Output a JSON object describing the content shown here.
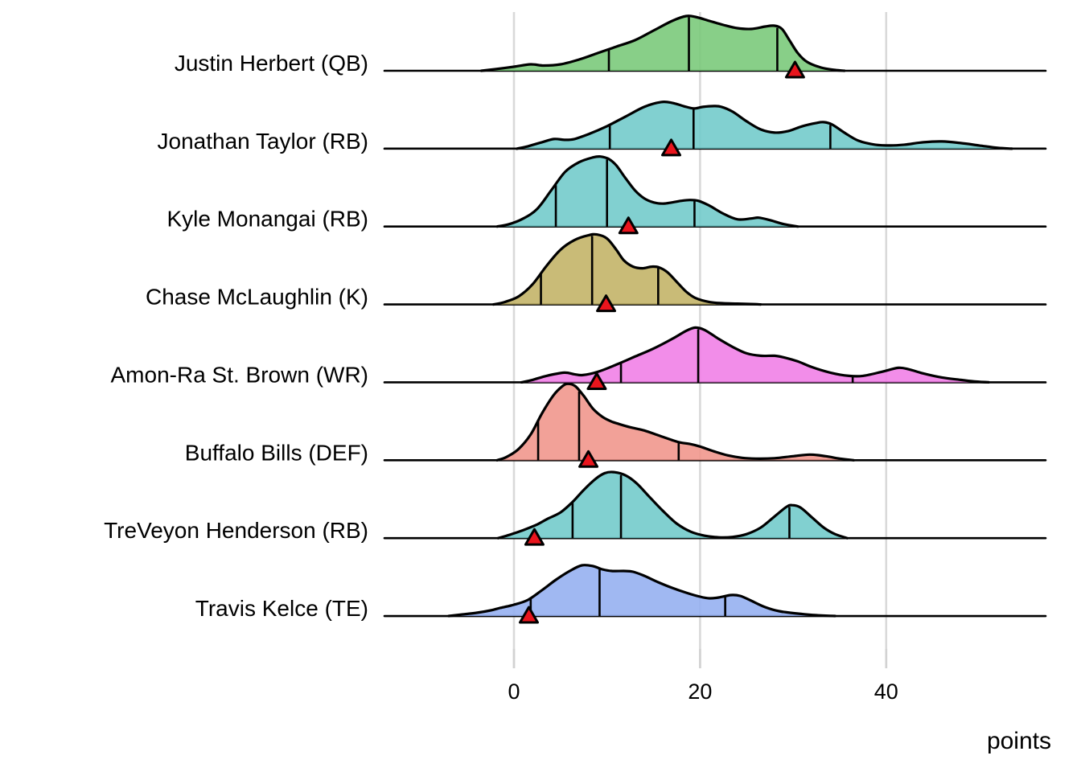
{
  "chart_data": {
    "type": "ridgeline",
    "title": "",
    "xlabel": "points",
    "x_ticks": [
      0,
      20,
      40
    ],
    "x_domain": [
      -14,
      57
    ],
    "grid": "vertical-major-only",
    "marker_legend": "red triangle = actual points",
    "quartile_lines": [
      "q1",
      "median",
      "q3"
    ],
    "colors": {
      "ink": "#000000",
      "gridline": "#d9d9d9",
      "tick": "#d2d2d2",
      "marker_fill": "#e9151d",
      "marker_stroke": "#000000"
    },
    "rows": [
      {
        "label": "Justin Herbert (QB)",
        "fill": "#78c878",
        "quartiles": [
          10.2,
          18.8,
          28.3
        ],
        "actual": 30.2,
        "curve": [
          [
            -3.5,
            0
          ],
          [
            -2,
            2
          ],
          [
            0,
            5
          ],
          [
            1.8,
            8
          ],
          [
            3.2,
            6.5
          ],
          [
            5,
            8
          ],
          [
            7,
            14
          ],
          [
            9,
            22
          ],
          [
            11,
            30
          ],
          [
            13,
            38
          ],
          [
            15,
            50
          ],
          [
            17,
            62
          ],
          [
            18.5,
            68
          ],
          [
            19.5,
            67
          ],
          [
            21,
            62
          ],
          [
            22.5,
            57
          ],
          [
            24,
            53
          ],
          [
            25.5,
            52
          ],
          [
            27,
            55
          ],
          [
            28,
            56
          ],
          [
            28.8,
            52
          ],
          [
            29.6,
            38
          ],
          [
            30.5,
            22
          ],
          [
            31.5,
            11
          ],
          [
            33,
            4
          ],
          [
            34.5,
            1
          ],
          [
            35.5,
            0
          ]
        ]
      },
      {
        "label": "Jonathan Taylor (RB)",
        "fill": "#6fc9c9",
        "quartiles": [
          10.3,
          19.3,
          34.0
        ],
        "actual": 16.9,
        "curve": [
          [
            0.3,
            0
          ],
          [
            1.5,
            3
          ],
          [
            3,
            8
          ],
          [
            4.3,
            12
          ],
          [
            5.5,
            11
          ],
          [
            6.5,
            12
          ],
          [
            8,
            18
          ],
          [
            10,
            28
          ],
          [
            12,
            40
          ],
          [
            14,
            52
          ],
          [
            15.8,
            58
          ],
          [
            17,
            57
          ],
          [
            18.2,
            53
          ],
          [
            19.3,
            50
          ],
          [
            20.3,
            52
          ],
          [
            21.5,
            53
          ],
          [
            22.3,
            52
          ],
          [
            23.5,
            46
          ],
          [
            25,
            34
          ],
          [
            26.5,
            24
          ],
          [
            28,
            20
          ],
          [
            29.5,
            22
          ],
          [
            31,
            28
          ],
          [
            32.5,
            32
          ],
          [
            33.3,
            33
          ],
          [
            34.2,
            30
          ],
          [
            35.5,
            20
          ],
          [
            37,
            10
          ],
          [
            38.8,
            5
          ],
          [
            40.5,
            4
          ],
          [
            42,
            5
          ],
          [
            44,
            8
          ],
          [
            46,
            9
          ],
          [
            48,
            7
          ],
          [
            50,
            4
          ],
          [
            52,
            1
          ],
          [
            53.5,
            0
          ]
        ]
      },
      {
        "label": "Kyle Monangai (RB)",
        "fill": "#6fc9c9",
        "quartiles": [
          4.5,
          10.0,
          19.4
        ],
        "actual": 12.3,
        "curve": [
          [
            -1.8,
            0
          ],
          [
            -0.5,
            3
          ],
          [
            1,
            10
          ],
          [
            2.5,
            22
          ],
          [
            4,
            45
          ],
          [
            5.5,
            68
          ],
          [
            7,
            80
          ],
          [
            8.5,
            86
          ],
          [
            9.3,
            87
          ],
          [
            10.2,
            84
          ],
          [
            11,
            76
          ],
          [
            12,
            60
          ],
          [
            13,
            45
          ],
          [
            14,
            35
          ],
          [
            15,
            30
          ],
          [
            16,
            28.5
          ],
          [
            17,
            30
          ],
          [
            18,
            32
          ],
          [
            18.9,
            33
          ],
          [
            19.8,
            32
          ],
          [
            21,
            26
          ],
          [
            22.5,
            16
          ],
          [
            24,
            9
          ],
          [
            25.5,
            10
          ],
          [
            26.3,
            11
          ],
          [
            27.5,
            8
          ],
          [
            29,
            3
          ],
          [
            30.5,
            0
          ]
        ]
      },
      {
        "label": "Chase McLaughlin (K)",
        "fill": "#c2b264",
        "quartiles": [
          2.9,
          8.4,
          15.5
        ],
        "actual": 9.9,
        "curve": [
          [
            -2.2,
            0
          ],
          [
            -1,
            3
          ],
          [
            0.5,
            10
          ],
          [
            2,
            25
          ],
          [
            3.5,
            48
          ],
          [
            5,
            68
          ],
          [
            6.5,
            80
          ],
          [
            8,
            86
          ],
          [
            8.9,
            87
          ],
          [
            10,
            82
          ],
          [
            11,
            68
          ],
          [
            11.8,
            55
          ],
          [
            12.8,
            47
          ],
          [
            13.8,
            45
          ],
          [
            14.8,
            47
          ],
          [
            15.6,
            46
          ],
          [
            16.5,
            40
          ],
          [
            17.5,
            28
          ],
          [
            18.5,
            16
          ],
          [
            19.5,
            8
          ],
          [
            21,
            3
          ],
          [
            22.5,
            1.5
          ],
          [
            24,
            1
          ],
          [
            25.5,
            0.5
          ],
          [
            26.5,
            0
          ]
        ]
      },
      {
        "label": "Amon-Ra St. Brown (WR)",
        "fill": "#f07de6",
        "quartiles": [
          11.5,
          19.8,
          36.4
        ],
        "actual": 8.9,
        "curve": [
          [
            0.8,
            0
          ],
          [
            2,
            3
          ],
          [
            3.5,
            8
          ],
          [
            5.4,
            12
          ],
          [
            6.5,
            10
          ],
          [
            7.4,
            9
          ],
          [
            9,
            13
          ],
          [
            11,
            22
          ],
          [
            13,
            32
          ],
          [
            15,
            42
          ],
          [
            17,
            54
          ],
          [
            18.5,
            64
          ],
          [
            19.5,
            68
          ],
          [
            20.5,
            65
          ],
          [
            22,
            54
          ],
          [
            23.5,
            44
          ],
          [
            25,
            36
          ],
          [
            26.5,
            33
          ],
          [
            28,
            33
          ],
          [
            29,
            31
          ],
          [
            30.5,
            26
          ],
          [
            32,
            19
          ],
          [
            34,
            12
          ],
          [
            36,
            8
          ],
          [
            37.5,
            8
          ],
          [
            39.5,
            13
          ],
          [
            41.3,
            18
          ],
          [
            42.5,
            16
          ],
          [
            44,
            11
          ],
          [
            46,
            6
          ],
          [
            48,
            3
          ],
          [
            49.5,
            1
          ],
          [
            51,
            0
          ]
        ]
      },
      {
        "label": "Buffalo Bills (DEF)",
        "fill": "#f0948a",
        "quartiles": [
          2.6,
          7.0,
          17.7
        ],
        "actual": 8.0,
        "curve": [
          [
            -1.8,
            0
          ],
          [
            -0.8,
            4
          ],
          [
            0.5,
            14
          ],
          [
            1.8,
            32
          ],
          [
            3,
            58
          ],
          [
            4.2,
            80
          ],
          [
            5.2,
            92
          ],
          [
            5.8,
            95
          ],
          [
            6.6,
            92
          ],
          [
            7.5,
            80
          ],
          [
            8.5,
            64
          ],
          [
            9.5,
            54
          ],
          [
            10.5,
            48
          ],
          [
            11.3,
            45
          ],
          [
            12.5,
            41
          ],
          [
            14,
            37
          ],
          [
            15.5,
            31
          ],
          [
            17,
            25
          ],
          [
            17.9,
            22
          ],
          [
            19,
            20
          ],
          [
            20,
            17
          ],
          [
            21.5,
            11
          ],
          [
            23,
            6
          ],
          [
            24.5,
            3
          ],
          [
            26,
            2
          ],
          [
            28,
            2.5
          ],
          [
            30,
            5
          ],
          [
            31.8,
            7
          ],
          [
            33.5,
            5
          ],
          [
            35,
            2
          ],
          [
            36.5,
            0
          ]
        ]
      },
      {
        "label": "TreVeyon Henderson (RB)",
        "fill": "#6fc9c9",
        "quartiles": [
          6.3,
          11.5,
          29.6
        ],
        "actual": 2.2,
        "curve": [
          [
            -1.7,
            0
          ],
          [
            -0.5,
            4
          ],
          [
            1,
            10
          ],
          [
            2.5,
            17
          ],
          [
            3.6,
            24
          ],
          [
            5,
            32
          ],
          [
            6.3,
            45
          ],
          [
            7.5,
            60
          ],
          [
            8.8,
            74
          ],
          [
            9.8,
            81
          ],
          [
            10.8,
            82
          ],
          [
            12,
            78
          ],
          [
            13.2,
            68
          ],
          [
            14.5,
            52
          ],
          [
            16,
            34
          ],
          [
            17.5,
            18
          ],
          [
            19,
            8
          ],
          [
            20.5,
            3
          ],
          [
            22,
            1
          ],
          [
            23.5,
            1.5
          ],
          [
            25,
            5
          ],
          [
            26.5,
            13
          ],
          [
            28,
            27
          ],
          [
            29.3,
            39
          ],
          [
            29.9,
            41
          ],
          [
            30.8,
            38
          ],
          [
            32,
            26
          ],
          [
            33.3,
            13
          ],
          [
            34.5,
            5
          ],
          [
            35.8,
            0
          ]
        ]
      },
      {
        "label": "Travis Kelce (TE)",
        "fill": "#93aef0",
        "quartiles": [
          1.8,
          9.2,
          22.7
        ],
        "actual": 1.6,
        "curve": [
          [
            -7,
            0
          ],
          [
            -5.5,
            2
          ],
          [
            -4,
            4
          ],
          [
            -2.5,
            7
          ],
          [
            -1.5,
            10
          ],
          [
            0,
            14
          ],
          [
            1.5,
            20
          ],
          [
            3,
            32
          ],
          [
            4.5,
            45
          ],
          [
            6,
            56
          ],
          [
            7.3,
            63
          ],
          [
            8.5,
            62
          ],
          [
            9.5,
            58
          ],
          [
            10.5,
            56
          ],
          [
            11.8,
            56
          ],
          [
            12.8,
            55
          ],
          [
            14,
            50
          ],
          [
            15.5,
            42
          ],
          [
            17,
            35
          ],
          [
            18.5,
            29
          ],
          [
            20,
            24
          ],
          [
            21,
            22
          ],
          [
            22,
            23
          ],
          [
            23.3,
            26
          ],
          [
            24.3,
            25
          ],
          [
            25.5,
            19
          ],
          [
            27,
            11
          ],
          [
            28.5,
            6
          ],
          [
            30.5,
            3
          ],
          [
            32.5,
            1
          ],
          [
            34.5,
            0
          ]
        ]
      }
    ]
  }
}
